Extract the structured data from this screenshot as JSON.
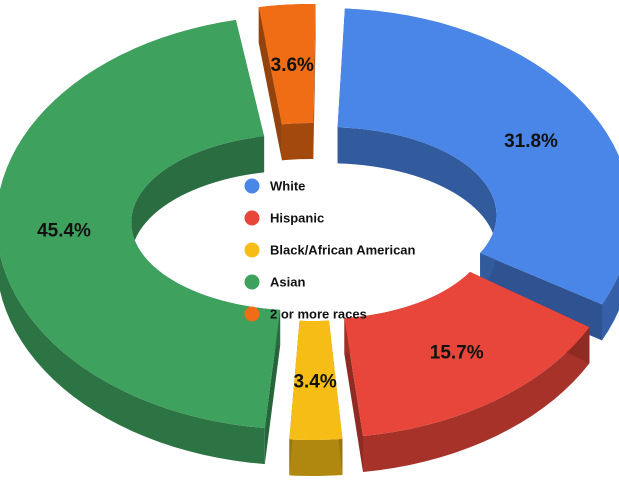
{
  "chart_data": {
    "type": "pie",
    "variant": "3d-donut-exploded",
    "title": "",
    "categories": [
      "White",
      "Hispanic",
      "Black/African American",
      "Asian",
      "2 or more races"
    ],
    "values": [
      31.8,
      15.7,
      3.4,
      45.4,
      3.6
    ],
    "labels": [
      "31.8%",
      "15.7%",
      "3.4%",
      "45.4%",
      "3.6%"
    ],
    "colors": [
      "#4a86e8",
      "#e8463a",
      "#f5bd16",
      "#3ea15e",
      "#f06c15"
    ],
    "legend_position": "center",
    "legend": [
      {
        "name": "White",
        "color": "#4a86e8"
      },
      {
        "name": "Hispanic",
        "color": "#e8463a"
      },
      {
        "name": "Black/African American",
        "color": "#f5bd16"
      },
      {
        "name": "Asian",
        "color": "#3ea15e"
      },
      {
        "name": "2 or more races",
        "color": "#f06c15"
      }
    ]
  }
}
